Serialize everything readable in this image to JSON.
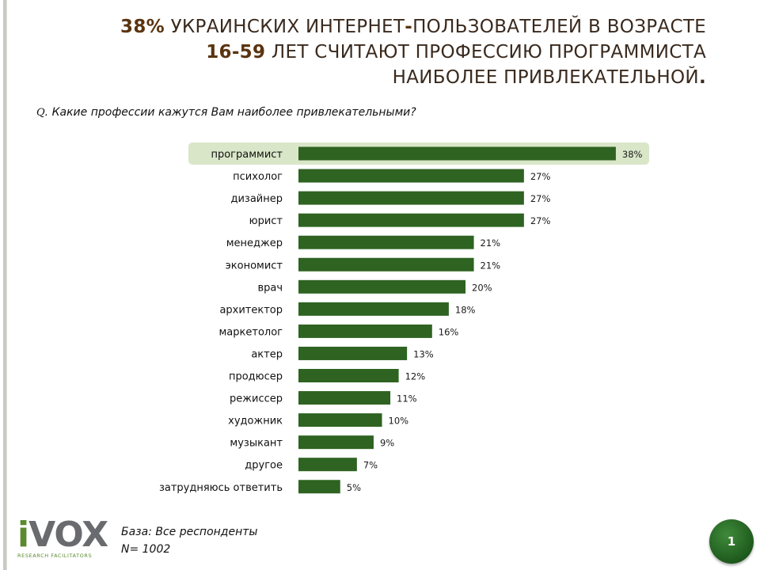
{
  "title": {
    "part1_accent": "38%",
    "part1_rest": " УКРАИНСКИХ ИНТЕРНЕТ",
    "hyphen": "-",
    "part1_tail": "ПОЛЬЗОВАТЕЛЕЙ В ВОЗРАСТЕ",
    "part2_accent": "16-59",
    "part2_rest": " ЛЕТ СЧИТАЮТ ПРОФЕССИЮ ПРОГРАММИСТА",
    "part3": "НАИБОЛЕЕ ПРИВЛЕКАТЕЛЬНОЙ",
    "period": "."
  },
  "question": {
    "prefix": "Q",
    "text": ". Какие профессии кажутся Вам наиболее привлекательными?"
  },
  "footer": {
    "base_label": "База: Все респонденты",
    "n_label": "N= 1002",
    "page_number": "1",
    "logo_i": "i",
    "logo_rest": "VOX",
    "logo_tagline": "RESEARCH FACILITATORS"
  },
  "chart_data": {
    "type": "bar",
    "orientation": "horizontal",
    "categories": [
      "программист",
      "психолог",
      "дизайнер",
      "юрист",
      "менеджер",
      "экономист",
      "врач",
      "архитектор",
      "маркетолог",
      "актер",
      "продюсер",
      "режиссер",
      "художник",
      "музыкант",
      "другое",
      "затрудняюсь ответить"
    ],
    "values": [
      38,
      27,
      27,
      27,
      21,
      21,
      20,
      18,
      16,
      13,
      12,
      11,
      10,
      9,
      7,
      5
    ],
    "labels": [
      "38%",
      "27%",
      "27%",
      "27%",
      "21%",
      "21%",
      "20%",
      "18%",
      "16%",
      "13%",
      "12%",
      "11%",
      "10%",
      "9%",
      "7%",
      "5%"
    ],
    "highlighted_category": "программист",
    "bar_color": "#2e6321",
    "highlight_color": "#d9e6c8",
    "label_color": "#1a1a1a"
  },
  "colors": {
    "title_text": "#3a2a1e",
    "title_accent": "#5a3410",
    "brand_green": "#5c8a2e",
    "badge_green": "#1e5a1d"
  }
}
